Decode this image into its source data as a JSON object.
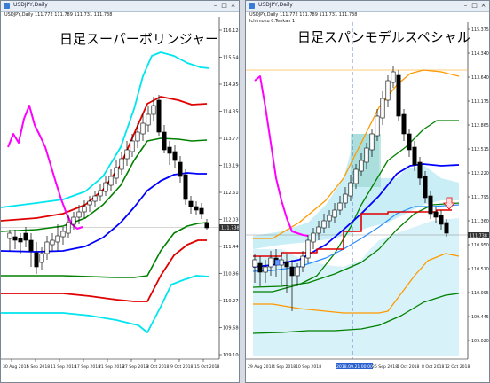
{
  "left": {
    "window_title": "USDJPY,Daily",
    "info": "USDJPY,Daily 111.772 111.789 111.731 111.738",
    "overlay_title": "日足スーパーボリンジャー",
    "price_labels": [
      "116.120",
      "115.540",
      "114.950",
      "114.350",
      "113.770",
      "113.190",
      "112.610",
      "112.030",
      "111.440",
      "110.860",
      "110.270",
      "109.680",
      "109.100"
    ],
    "current_price": "111.738",
    "date_labels": [
      "30 Aug 2018",
      "5 Sep 2018",
      "11 Sep 2018",
      "17 Sep 2018",
      "21 Sep 2018",
      "27 Sep 2018",
      "3 Oct 2018",
      "9 Oct 2018",
      "15 Oct 2018"
    ]
  },
  "right": {
    "window_title": "USDJPY,Daily",
    "info": "USDJPY,Daily 111.772 111.789 111.731 111.738",
    "info2": "Ichimoku 0.Tenkan 1",
    "overlay_title": "日足スパンモデルスペシャル",
    "price_labels": [
      "115.375",
      "114.340",
      "113.640",
      "113.175",
      "112.865",
      "112.515",
      "112.220",
      "111.795",
      "111.360",
      "110.950",
      "110.510",
      "110.095",
      "109.445",
      "109.020"
    ],
    "current_price": "111.738",
    "date_labels": [
      "29 Aug 2018",
      "4 Sep 2018",
      "10 Sep 2018",
      "2018.09.21 00:00",
      "26 Sep 2018",
      "1 Oct 2018",
      "8 Oct 2018",
      "12 Oct 2018"
    ]
  },
  "colors": {
    "up_candle": "#ffffff",
    "down_candle": "#000000",
    "upper_band_3": "#00e5ee",
    "upper_band_2": "#e00000",
    "upper_band_1": "#008000",
    "mid_band": "#0000ff",
    "lagging_line": "#ff00ff",
    "span_cloud": "#c9eef5",
    "orange_band": "#ff9900"
  }
}
